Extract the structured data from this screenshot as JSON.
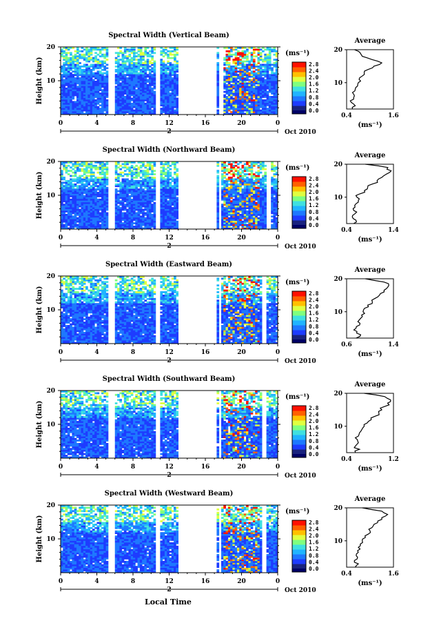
{
  "figure": {
    "xlabel": "Local Time",
    "colorbar_unit": "(ms⁻¹)",
    "colorbar_ticks": [
      "0.0",
      "0.4",
      "0.8",
      "1.2",
      "1.6",
      "2.0",
      "2.4",
      "2.8"
    ],
    "time_ticks": [
      "0",
      "4",
      "8",
      "12",
      "16",
      "20",
      "0"
    ],
    "date_tick": "2",
    "month_label": "Oct 2010",
    "height_label": "Height (km)",
    "height_ticks": [
      "20",
      "10"
    ],
    "avg_title": "Average",
    "avg_ylabel_ticks": [
      "20",
      "10"
    ],
    "avg_unit": "(ms⁻¹)"
  },
  "colors": {
    "scale": [
      "#1a237e",
      "#1e3cff",
      "#1e78ff",
      "#20b4ff",
      "#3fe0e0",
      "#7fff7f",
      "#e0ff40",
      "#ffc000",
      "#ff6000",
      "#ff1000"
    ],
    "bottom_band": "#000066"
  },
  "chart_data": [
    {
      "type": "heatmap",
      "title": "Spectral Width (Vertical Beam)",
      "ylim": [
        0,
        20
      ],
      "xlim": [
        0,
        24
      ],
      "gaps_hours": [
        [
          5.3,
          5.9
        ],
        [
          10.6,
          11.1
        ],
        [
          13.0,
          17.2
        ],
        [
          17.6,
          17.9
        ]
      ],
      "color_range": [
        0.0,
        3.0
      ],
      "avg_xticks": [
        "0.4",
        "1.6"
      ],
      "avg_xlim": [
        0.4,
        1.6
      ],
      "avg_profile": {
        "height": [
          2,
          3,
          4,
          5,
          6,
          7,
          8,
          9,
          10,
          11,
          12,
          13,
          14,
          15,
          16,
          17,
          18,
          19,
          20
        ],
        "value": [
          0.55,
          0.62,
          0.52,
          0.58,
          0.6,
          0.55,
          0.62,
          0.68,
          0.7,
          0.72,
          0.8,
          0.85,
          0.95,
          1.1,
          1.3,
          1.05,
          0.8,
          0.75,
          0.6
        ]
      }
    },
    {
      "type": "heatmap",
      "title": "Spectral Width (Northward Beam)",
      "ylim": [
        0,
        20
      ],
      "xlim": [
        0,
        24
      ],
      "gaps_hours": [
        [
          5.3,
          5.9
        ],
        [
          10.6,
          11.0
        ],
        [
          13.0,
          17.2
        ],
        [
          17.6,
          17.8
        ],
        [
          22.8,
          23.2
        ]
      ],
      "color_range": [
        0.0,
        3.0
      ],
      "avg_xticks": [
        "0.4",
        "1.4"
      ],
      "avg_xlim": [
        0.4,
        1.4
      ],
      "avg_profile": {
        "height": [
          2,
          3,
          4,
          5,
          6,
          7,
          8,
          9,
          10,
          11,
          12,
          13,
          14,
          15,
          16,
          17,
          18,
          19,
          20
        ],
        "value": [
          0.55,
          0.6,
          0.52,
          0.58,
          0.55,
          0.58,
          0.6,
          0.65,
          0.62,
          0.68,
          0.78,
          0.85,
          0.95,
          1.05,
          1.15,
          1.25,
          1.35,
          1.28,
          0.8
        ]
      }
    },
    {
      "type": "heatmap",
      "title": "Spectral Width (Eastward Beam)",
      "ylim": [
        0,
        20
      ],
      "xlim": [
        0,
        24
      ],
      "gaps_hours": [
        [
          5.3,
          5.9
        ],
        [
          10.6,
          11.0
        ],
        [
          13.0,
          17.2
        ],
        [
          17.6,
          17.8
        ],
        [
          22.2,
          22.7
        ]
      ],
      "color_range": [
        0.0,
        3.0
      ],
      "avg_xticks": [
        "0.6",
        "1.4"
      ],
      "avg_xlim": [
        0.4,
        1.4
      ],
      "avg_profile": {
        "height": [
          2,
          3,
          4,
          5,
          6,
          7,
          8,
          9,
          10,
          11,
          12,
          13,
          14,
          15,
          16,
          17,
          18,
          19,
          20
        ],
        "value": [
          0.6,
          0.7,
          0.62,
          0.6,
          0.68,
          0.64,
          0.7,
          0.72,
          0.75,
          0.78,
          0.85,
          0.95,
          1.0,
          1.1,
          1.2,
          1.25,
          1.3,
          1.2,
          0.8
        ]
      }
    },
    {
      "type": "heatmap",
      "title": "Spectral Width (Southward Beam)",
      "ylim": [
        0,
        20
      ],
      "xlim": [
        0,
        24
      ],
      "gaps_hours": [
        [
          5.3,
          5.9
        ],
        [
          10.6,
          11.0
        ],
        [
          13.0,
          17.2
        ],
        [
          17.6,
          17.8
        ],
        [
          22.2,
          22.7
        ]
      ],
      "color_range": [
        0.0,
        3.0
      ],
      "avg_xticks": [
        "0.4",
        "1.2"
      ],
      "avg_xlim": [
        0.4,
        1.2
      ],
      "avg_profile": {
        "height": [
          2,
          3,
          4,
          5,
          6,
          7,
          8,
          9,
          10,
          11,
          12,
          13,
          14,
          15,
          16,
          17,
          18,
          19,
          20
        ],
        "value": [
          0.55,
          0.62,
          0.55,
          0.6,
          0.58,
          0.6,
          0.62,
          0.66,
          0.7,
          0.75,
          0.82,
          0.88,
          0.95,
          1.0,
          1.05,
          1.1,
          1.15,
          1.05,
          0.7
        ]
      }
    },
    {
      "type": "heatmap",
      "title": "Spectral Width (Westward Beam)",
      "ylim": [
        0,
        20
      ],
      "xlim": [
        0,
        24
      ],
      "gaps_hours": [
        [
          5.3,
          5.9
        ],
        [
          10.6,
          11.0
        ],
        [
          13.0,
          17.2
        ],
        [
          17.6,
          17.8
        ],
        [
          22.2,
          22.7
        ]
      ],
      "color_range": [
        0.0,
        3.0
      ],
      "avg_xticks": [
        "0.4",
        "1.6"
      ],
      "avg_xlim": [
        0.4,
        1.6
      ],
      "avg_profile": {
        "height": [
          2,
          3,
          4,
          5,
          6,
          7,
          8,
          9,
          10,
          11,
          12,
          13,
          14,
          15,
          16,
          17,
          18,
          19,
          20
        ],
        "value": [
          0.62,
          0.7,
          0.6,
          0.68,
          0.65,
          0.68,
          0.7,
          0.75,
          0.8,
          0.88,
          0.95,
          1.0,
          1.05,
          1.1,
          1.2,
          1.3,
          1.45,
          1.3,
          0.8
        ]
      }
    }
  ]
}
